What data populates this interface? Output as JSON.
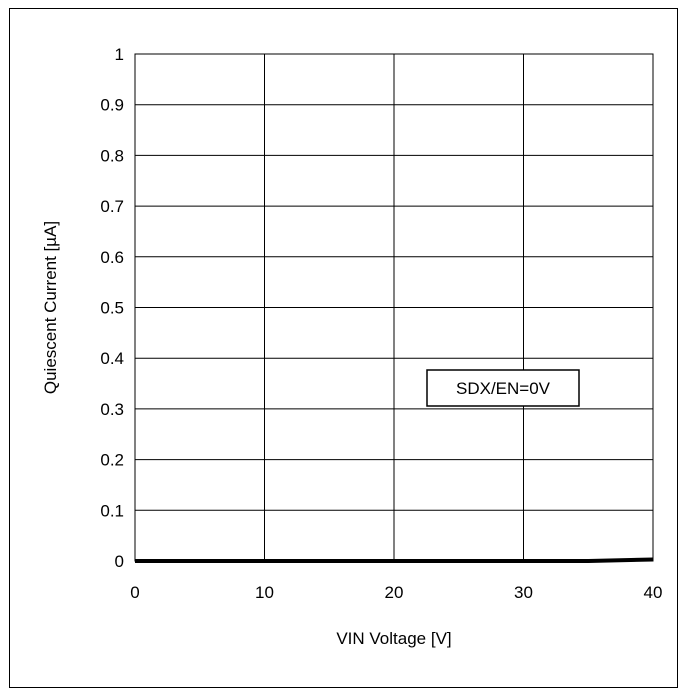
{
  "chart_data": {
    "type": "line",
    "title": "",
    "xlabel": "VIN Voltage [V]",
    "ylabel": "Quiescent Current [µA]",
    "xlim": [
      0,
      40
    ],
    "ylim": [
      0,
      1
    ],
    "x_ticks": [
      "0",
      "10",
      "20",
      "30",
      "40"
    ],
    "y_ticks": [
      "0",
      "0.1",
      "0.2",
      "0.3",
      "0.4",
      "0.5",
      "0.6",
      "0.7",
      "0.8",
      "0.9",
      "1"
    ],
    "grid": true,
    "annotation": "SDX/EN=0V",
    "series": [
      {
        "color": "#000000",
        "x": [
          0,
          5,
          10,
          15,
          20,
          25,
          30,
          35,
          40
        ],
        "y": [
          0,
          0,
          0,
          0,
          0,
          0,
          0,
          0,
          0.003
        ]
      }
    ]
  }
}
